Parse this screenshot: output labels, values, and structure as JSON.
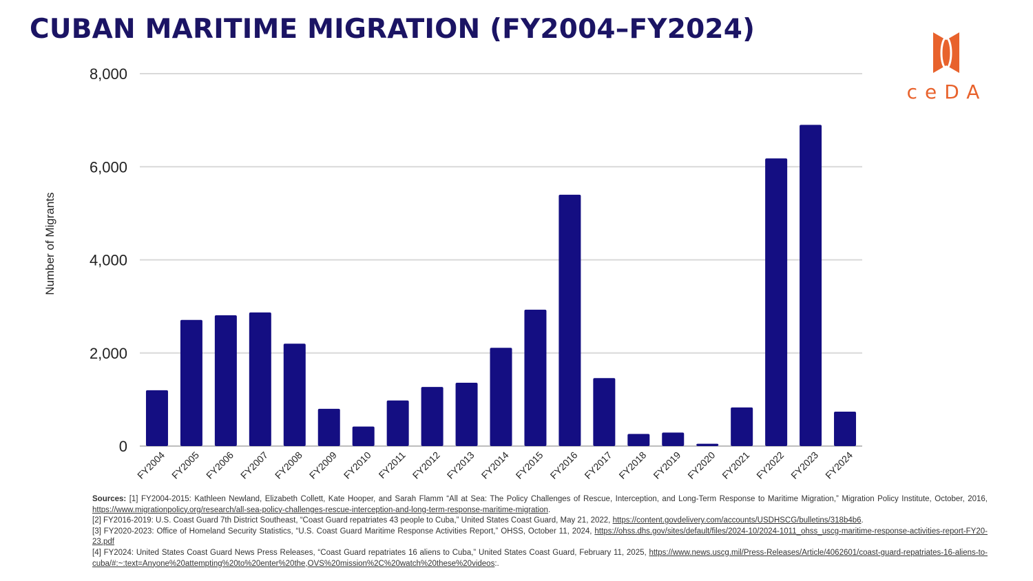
{
  "header": {
    "title": "CUBAN MARITIME MIGRATION (FY2004–FY2024)"
  },
  "logo": {
    "text": "ceDA",
    "color": "#e8622c"
  },
  "colors": {
    "bar": "#140e82",
    "title": "#1b1464",
    "grid": "#d9d9d9",
    "accent": "#e8622c"
  },
  "chart_data": {
    "type": "bar",
    "title": "CUBAN MARITIME MIGRATION (FY2004–FY2024)",
    "xlabel": "",
    "ylabel": "Number of Migrants",
    "ylim": [
      0,
      8000
    ],
    "yticks": [
      0,
      2000,
      4000,
      6000,
      8000
    ],
    "ytick_labels": [
      "0",
      "2,000",
      "4,000",
      "6,000",
      "8,000"
    ],
    "grid": true,
    "legend": "none",
    "categories": [
      "FY2004",
      "FY2005",
      "FY2006",
      "FY2007",
      "FY2008",
      "FY2009",
      "FY2010",
      "FY2011",
      "FY2012",
      "FY2013",
      "FY2014",
      "FY2015",
      "FY2016",
      "FY2017",
      "FY2018",
      "FY2019",
      "FY2020",
      "FY2021",
      "FY2022",
      "FY2023",
      "FY2024"
    ],
    "values": [
      1200,
      2710,
      2810,
      2870,
      2200,
      800,
      420,
      980,
      1270,
      1360,
      2110,
      2930,
      5400,
      1460,
      260,
      290,
      50,
      830,
      6180,
      6900,
      740
    ]
  },
  "sources": {
    "label": "Sources:",
    "items": [
      {
        "text": " [1] FY2004-2015: Kathleen Newland, Elizabeth Collett, Kate Hooper, and Sarah Flamm “All at Sea: The Policy Challenges of Rescue, Interception, and Long-Term Response to Maritime Migration,” Migration Policy Institute, October, 2016, ",
        "link": "https://www.migrationpolicy.org/research/all-sea-policy-challenges-rescue-interception-and-long-term-response-maritime-migration",
        "end": "."
      },
      {
        "text": "[2] FY2016-2019: U.S. Coast Guard 7th District Southeast, “Coast Guard repatriates 43 people to Cuba,” United States Coast Guard, May 21, 2022, ",
        "link": "https://content.govdelivery.com/accounts/USDHSCG/bulletins/318b4b6",
        "end": "."
      },
      {
        "text": "[3] FY2020-2023: Office of Homeland Security Statistics, “U.S. Coast Guard Maritime Response Activities Report,” OHSS, October 11, 2024, ",
        "link": "https://ohss.dhs.gov/sites/default/files/2024-10/2024-1011_ohss_uscg-maritime-response-activities-report-FY20-23.pdf",
        "end": ""
      },
      {
        "text": "[4] FY2024: United States Coast Guard News Press Releases, “Coast Guard repatriates 16 aliens to Cuba,” United States Coast Guard, February 11, 2025, ",
        "link": "https://www.news.uscg.mil/Press-Releases/Article/4062601/coast-guard-repatriates-16-aliens-to-cuba/#:~:text=Anyone%20attempting%20to%20enter%20the,OVS%20mission%2C%20watch%20these%20videos",
        "end": ":."
      }
    ]
  }
}
